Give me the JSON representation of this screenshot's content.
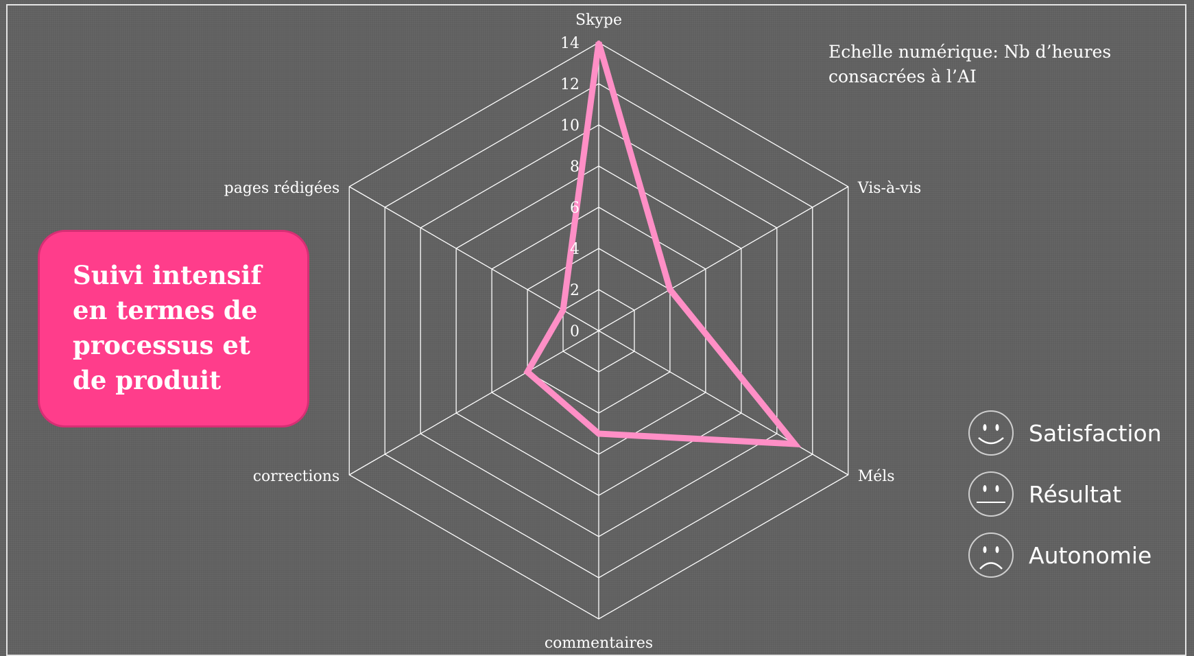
{
  "chart_data": {
    "type": "radar",
    "categories": [
      "Skype",
      "Vis-à-vis",
      "Méls",
      "commentaires",
      "corrections",
      "pages rédigées"
    ],
    "series": [
      {
        "values": [
          14,
          4,
          11,
          5,
          4,
          2
        ]
      }
    ],
    "r_range": [
      0,
      14
    ],
    "r_ticks": [
      "0",
      "2",
      "4",
      "6",
      "8",
      "10",
      "12",
      "14"
    ],
    "line_color": "#ff8fc6",
    "grid_color": "#ffffff",
    "grid": true
  },
  "annotation": {
    "scale_line1": "Echelle numérique: Nb d’heures",
    "scale_line2": "consacrées à l’AI"
  },
  "callout": {
    "lines": [
      "Suivi intensif",
      "en termes de",
      "processus et",
      "de produit"
    ],
    "color": "#ff3d8b"
  },
  "legend": [
    {
      "icon": "smiley-face-icon",
      "label": "Satisfaction"
    },
    {
      "icon": "neutral-face-icon",
      "label": "Résultat"
    },
    {
      "icon": "sad-face-icon",
      "label": "Autonomie"
    }
  ]
}
